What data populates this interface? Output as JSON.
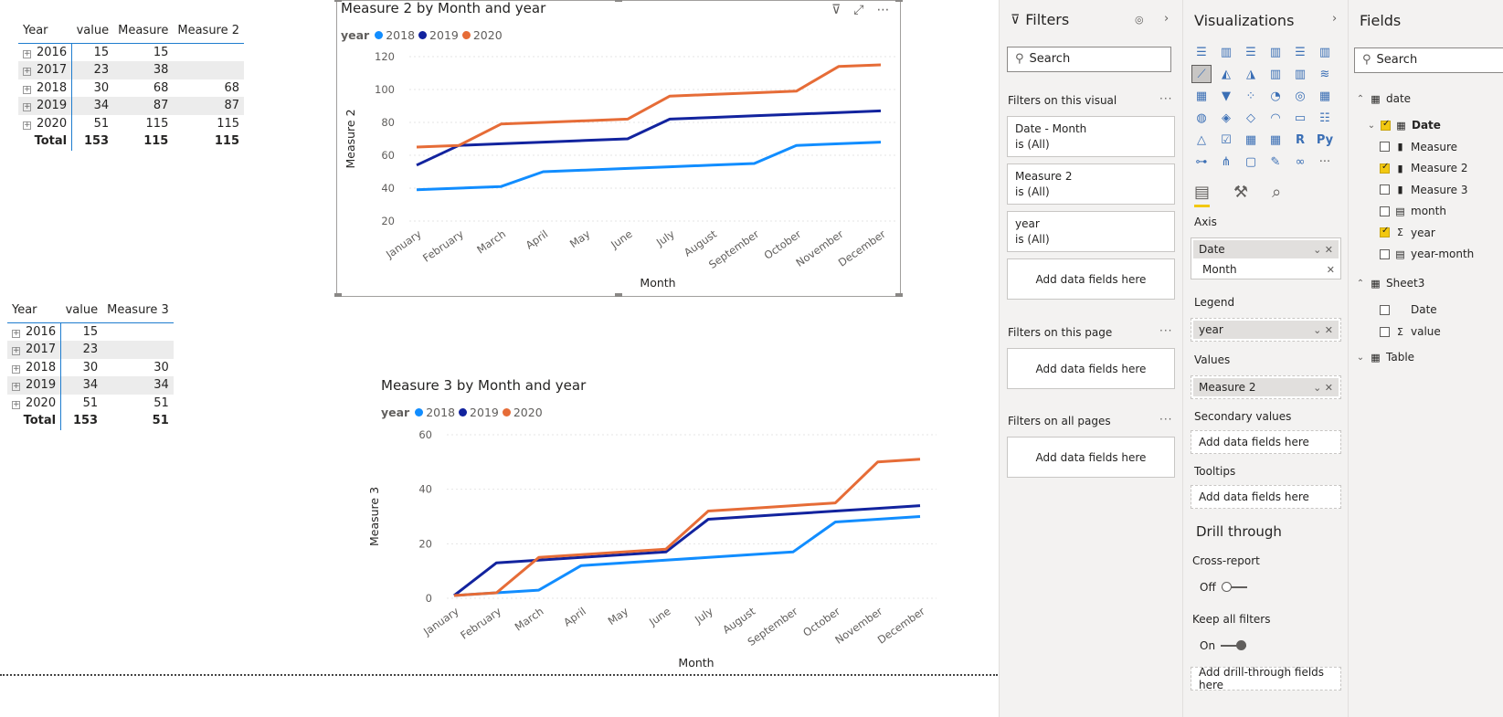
{
  "table1": {
    "headers": [
      "Year",
      "value",
      "Measure",
      "Measure 2"
    ],
    "rows": [
      [
        "2016",
        "15",
        "15",
        ""
      ],
      [
        "2017",
        "23",
        "38",
        ""
      ],
      [
        "2018",
        "30",
        "68",
        "68"
      ],
      [
        "2019",
        "34",
        "87",
        "87"
      ],
      [
        "2020",
        "51",
        "115",
        "115"
      ]
    ],
    "total": [
      "Total",
      "153",
      "115",
      "115"
    ]
  },
  "table2": {
    "headers": [
      "Year",
      "value",
      "Measure 3"
    ],
    "rows": [
      [
        "2016",
        "15",
        ""
      ],
      [
        "2017",
        "23",
        ""
      ],
      [
        "2018",
        "30",
        "30"
      ],
      [
        "2019",
        "34",
        "34"
      ],
      [
        "2020",
        "51",
        "51"
      ]
    ],
    "total": [
      "Total",
      "153",
      "51"
    ]
  },
  "chart_data": [
    {
      "type": "line",
      "title": "Measure 2 by Month and year",
      "xlabel": "Month",
      "ylabel": "Measure 2",
      "legend_title": "year",
      "categories": [
        "January",
        "February",
        "March",
        "April",
        "May",
        "June",
        "July",
        "August",
        "September",
        "October",
        "November",
        "December"
      ],
      "yticks": [
        20,
        40,
        60,
        80,
        100,
        120
      ],
      "ylim": [
        20,
        120
      ],
      "grid": true,
      "legend_position": "top-left",
      "series": [
        {
          "name": "2018",
          "color": "#118dff",
          "values": [
            39,
            40,
            41,
            50,
            51,
            52,
            53,
            54,
            55,
            66,
            67,
            68
          ]
        },
        {
          "name": "2019",
          "color": "#12239e",
          "values": [
            54,
            66,
            67,
            68,
            69,
            70,
            82,
            83,
            84,
            85,
            86,
            87
          ]
        },
        {
          "name": "2020",
          "color": "#e66c37",
          "values": [
            65,
            66,
            79,
            80,
            81,
            82,
            96,
            97,
            98,
            99,
            114,
            115
          ]
        }
      ]
    },
    {
      "type": "line",
      "title": "Measure 3 by Month and year",
      "xlabel": "Month",
      "ylabel": "Measure 3",
      "legend_title": "year",
      "categories": [
        "January",
        "February",
        "March",
        "April",
        "May",
        "June",
        "July",
        "August",
        "September",
        "October",
        "November",
        "December"
      ],
      "yticks": [
        0,
        20,
        40,
        60
      ],
      "ylim": [
        0,
        60
      ],
      "grid": true,
      "legend_position": "top-left",
      "series": [
        {
          "name": "2018",
          "color": "#118dff",
          "values": [
            1,
            2,
            3,
            12,
            13,
            14,
            15,
            16,
            17,
            28,
            29,
            30
          ]
        },
        {
          "name": "2019",
          "color": "#12239e",
          "values": [
            1,
            13,
            14,
            15,
            16,
            17,
            29,
            30,
            31,
            32,
            33,
            34
          ]
        },
        {
          "name": "2020",
          "color": "#e66c37",
          "values": [
            1,
            2,
            15,
            16,
            17,
            18,
            32,
            33,
            34,
            35,
            50,
            51
          ]
        }
      ]
    }
  ],
  "filters": {
    "title": "Filters",
    "search_placeholder": "Search",
    "on_visual_label": "Filters on this visual",
    "on_visual": [
      {
        "name": "Date - Month",
        "state": "is (All)"
      },
      {
        "name": "Measure 2",
        "state": "is (All)"
      },
      {
        "name": "year",
        "state": "is (All)"
      }
    ],
    "add_fields": "Add data fields here",
    "on_page_label": "Filters on this page",
    "on_all_label": "Filters on all pages"
  },
  "visualizations": {
    "title": "Visualizations",
    "axis_label": "Axis",
    "axis_fields": [
      "Date",
      "Month"
    ],
    "legend_label": "Legend",
    "legend_field": "year",
    "values_label": "Values",
    "values_field": "Measure 2",
    "secondary_label": "Secondary values",
    "secondary_add": "Add data fields here",
    "tooltips_label": "Tooltips",
    "tooltips_add": "Add data fields here",
    "drill_title": "Drill through",
    "cross_report_label": "Cross-report",
    "cross_report_state": "Off",
    "keep_filters_label": "Keep all filters",
    "keep_filters_state": "On",
    "drill_add": "Add drill-through fields here",
    "r_label": "R",
    "py_label": "Py",
    "more_label": "···"
  },
  "fields": {
    "title": "Fields",
    "search_placeholder": "Search",
    "tables": [
      {
        "name": "date"
      },
      {
        "name": "Sheet3"
      },
      {
        "name": "Table"
      }
    ],
    "date_items": [
      {
        "name": "Date",
        "checked": true,
        "bold": true
      },
      {
        "name": "Measure",
        "checked": false
      },
      {
        "name": "Measure 2",
        "checked": true
      },
      {
        "name": "Measure 3",
        "checked": false
      },
      {
        "name": "month",
        "checked": false
      },
      {
        "name": "year",
        "checked": true
      },
      {
        "name": "year-month",
        "checked": false
      }
    ],
    "sheet3_items": [
      {
        "name": "Date",
        "checked": false
      },
      {
        "name": "value",
        "checked": false
      }
    ]
  },
  "colors": {
    "accent": "#f2c811",
    "s2018": "#118dff",
    "s2019": "#12239e",
    "s2020": "#e66c37"
  }
}
